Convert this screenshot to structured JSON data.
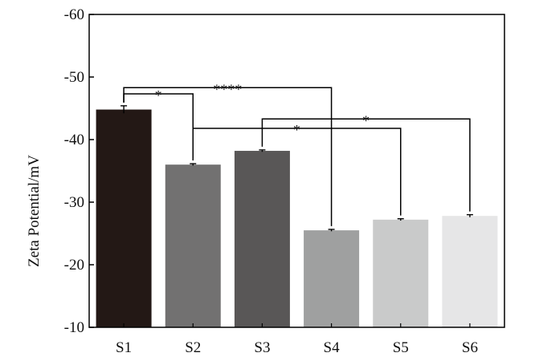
{
  "chart_data": {
    "type": "bar",
    "ylabel": "Zeta Potential/mV",
    "xlabel": "",
    "ylim": [
      -10,
      -60
    ],
    "yticks": [
      -10,
      -20,
      -30,
      -40,
      -50,
      -60
    ],
    "y_axis_inverted": true,
    "grid": false,
    "legend": "none",
    "categories": [
      "S1",
      "S2",
      "S3",
      "S4",
      "S5",
      "S6"
    ],
    "values": [
      -44.8,
      -36.0,
      -38.2,
      -25.5,
      -27.2,
      -27.8
    ],
    "errors": [
      0.6,
      0.15,
      0.15,
      0.15,
      0.15,
      0.2
    ],
    "colors": [
      "#231815",
      "#727171",
      "#595757",
      "#9fa0a0",
      "#c9caca",
      "#e6e6e7"
    ],
    "significance": [
      {
        "from": "S1",
        "to": "S2",
        "label": "*",
        "level": -47.3
      },
      {
        "from": "S1",
        "to": "S4",
        "label": "****",
        "level": -48.3
      },
      {
        "from": "S2",
        "to": "S5",
        "label": "*",
        "level": -41.8
      },
      {
        "from": "S3",
        "to": "S6",
        "label": "*",
        "level": -43.3
      }
    ]
  }
}
